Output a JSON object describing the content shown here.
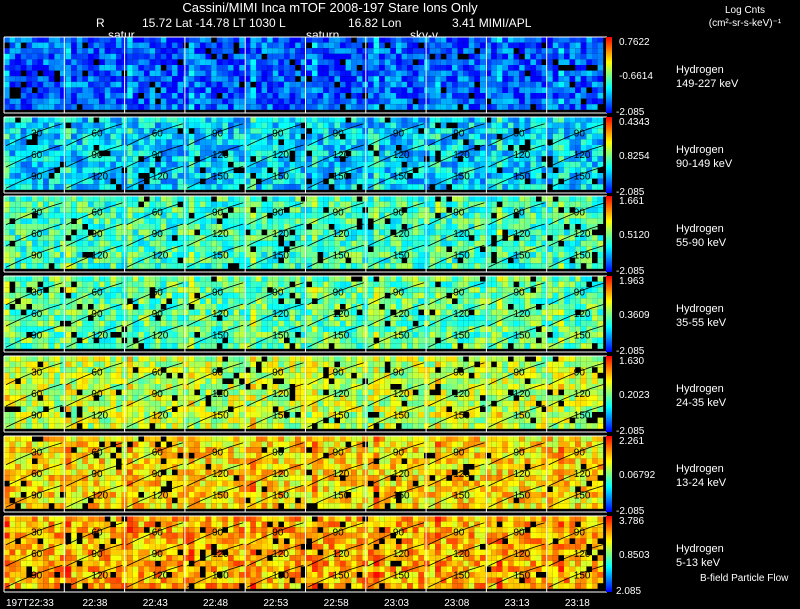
{
  "header": {
    "title": "Cassini/MIMI Inca mTOF  2008-197   Stare   Ions Only",
    "r_label": "R",
    "lat_lt": "15.72 Lat -14.78 LT 1030 L",
    "lon": "16.82 Lon",
    "mimi": "3.41   MIMI/APL",
    "marker_left": "satur",
    "marker_mid": "saturn",
    "marker_right": "sky-v",
    "units_line1": "Log Cnts",
    "units_line2": "(cm²-sr-s-keV)⁻¹",
    "footer_note": "B-field Particle Flow"
  },
  "palette": {
    "colorbar": [
      "#0000ff",
      "#0080ff",
      "#00ffff",
      "#80ff80",
      "#ffff00",
      "#ff8000",
      "#ff0000"
    ],
    "background": "#000000",
    "text": "#ffffff",
    "grid": "#ffffff",
    "contour": "#000000"
  },
  "chart_data": {
    "type": "heatmap",
    "time_labels": [
      "197T22:33",
      "22:38",
      "22:43",
      "22:48",
      "22:53",
      "22:58",
      "23:03",
      "23:08",
      "23:13",
      "23:18"
    ],
    "contour_labels": [
      "30",
      "60",
      "90",
      "120",
      "150"
    ],
    "rows": [
      {
        "species": "Hydrogen",
        "energy": "149-227 keV",
        "cb_max": "0.7622",
        "cb_mid": "-0.6614",
        "cb_min": "-2.085",
        "level": 0.12,
        "contours": false
      },
      {
        "species": "Hydrogen",
        "energy": "90-149 keV",
        "cb_max": "0.4343",
        "cb_mid": "0.8254",
        "cb_min": "-2.085",
        "level": 0.28,
        "contours": true
      },
      {
        "species": "Hydrogen",
        "energy": "55-90 keV",
        "cb_max": "1.661",
        "cb_mid": "0.5120",
        "cb_min": "-2.085",
        "level": 0.42,
        "contours": true
      },
      {
        "species": "Hydrogen",
        "energy": "35-55 keV",
        "cb_max": "1.963",
        "cb_mid": "0.3609",
        "cb_min": "-2.085",
        "level": 0.46,
        "contours": true
      },
      {
        "species": "Hydrogen",
        "energy": "24-35 keV",
        "cb_max": "1.630",
        "cb_mid": "0.2023",
        "cb_min": "-2.085",
        "level": 0.58,
        "contours": true
      },
      {
        "species": "Hydrogen",
        "energy": "13-24 keV",
        "cb_max": "2.261",
        "cb_mid": "0.06792",
        "cb_min": "-2.085",
        "level": 0.7,
        "contours": true
      },
      {
        "species": "Hydrogen",
        "energy": "5-13 keV",
        "cb_max": "3.786",
        "cb_mid": "0.8503",
        "cb_min": "2.085",
        "level": 0.76,
        "contours": true
      }
    ]
  }
}
